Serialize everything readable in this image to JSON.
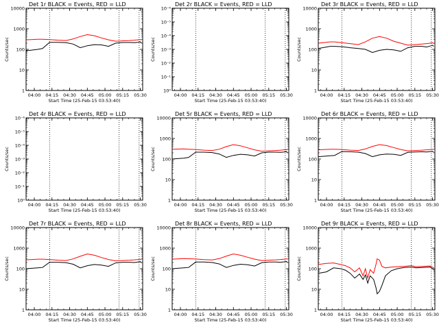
{
  "chart_data": [
    {
      "type": "line",
      "title": "Det 1r BLACK = Events, RED = LLD",
      "xlabel": "Start Time (25-Feb-15 03:53:40)",
      "ylabel": "Counts/sec",
      "yscale": "log",
      "ylim": [
        1,
        10000
      ],
      "y_ticks": [
        "1",
        "10",
        "100",
        "1000",
        "10000"
      ],
      "xlim": [
        "03:53",
        "05:32"
      ],
      "x_ticks": [
        "04:00",
        "04:15",
        "04:30",
        "04:45",
        "05:00",
        "05:15",
        "05:30"
      ],
      "markers": [
        "04:13",
        "05:12",
        "05:29"
      ],
      "x": [
        "03:53",
        "04:03",
        "04:07",
        "04:13",
        "04:20",
        "04:27",
        "04:33",
        "04:39",
        "04:45",
        "04:51",
        "04:57",
        "05:03",
        "05:09",
        "05:15",
        "05:21",
        "05:25",
        "05:28",
        "05:30",
        "05:31"
      ],
      "series": [
        {
          "name": "Events",
          "color": "#000000",
          "values": [
            85,
            100,
            110,
            220,
            220,
            210,
            180,
            120,
            150,
            170,
            165,
            140,
            200,
            215,
            215,
            210,
            220,
            230,
            200
          ]
        },
        {
          "name": "LLD",
          "color": "#ff0000",
          "values": [
            290,
            310,
            310,
            300,
            280,
            270,
            320,
            420,
            520,
            460,
            360,
            290,
            250,
            260,
            270,
            280,
            290,
            300,
            290
          ]
        }
      ]
    },
    {
      "type": "line",
      "title": "Det 2r BLACK = Events, RED = LLD",
      "xlabel": "Start Time (25-Feb-15 03:53:40)",
      "ylabel": "Counts/sec",
      "yscale": "log",
      "ylim": [
        1,
        1e-06
      ],
      "y_ticks": [
        "10⁰",
        "10⁻¹",
        "10⁻²",
        "10⁻³",
        "10⁻⁴",
        "10⁻⁵",
        "10⁻⁶"
      ],
      "xlim": [
        "03:53",
        "05:32"
      ],
      "x_ticks": [
        "04:00",
        "04:15",
        "04:30",
        "04:45",
        "05:00",
        "05:15",
        "05:30"
      ],
      "markers": [
        "04:13",
        "05:12",
        "05:29"
      ],
      "series": []
    },
    {
      "type": "line",
      "title": "Det 3r BLACK = Events, RED = LLD",
      "xlabel": "Start Time (25-Feb-15 03:53:40)",
      "ylabel": "Counts/sec",
      "yscale": "log",
      "ylim": [
        1,
        10000
      ],
      "y_ticks": [
        "1",
        "10",
        "100",
        "1000",
        "10000"
      ],
      "xlim": [
        "03:53",
        "05:32"
      ],
      "x_ticks": [
        "04:00",
        "04:15",
        "04:30",
        "04:45",
        "05:00",
        "05:15",
        "05:30"
      ],
      "markers": [
        "04:13",
        "05:12",
        "05:29"
      ],
      "x": [
        "03:53",
        "04:03",
        "04:07",
        "04:13",
        "04:20",
        "04:27",
        "04:33",
        "04:39",
        "04:45",
        "04:51",
        "04:57",
        "05:03",
        "05:09",
        "05:15",
        "05:21",
        "05:25",
        "05:28",
        "05:30",
        "05:31"
      ],
      "series": [
        {
          "name": "Events",
          "color": "#000000",
          "values": [
            110,
            140,
            140,
            135,
            120,
            110,
            100,
            70,
            90,
            100,
            95,
            80,
            120,
            140,
            140,
            130,
            145,
            160,
            140
          ]
        },
        {
          "name": "LLD",
          "color": "#ff0000",
          "values": [
            200,
            230,
            230,
            210,
            190,
            170,
            230,
            350,
            420,
            350,
            250,
            200,
            160,
            170,
            180,
            190,
            200,
            210,
            190
          ]
        }
      ]
    },
    {
      "type": "line",
      "title": "Det 4r BLACK = Events, RED = LLD",
      "xlabel": "Start Time (25-Feb-15 03:53:40)",
      "ylabel": "Counts/sec",
      "yscale": "log",
      "ylim": [
        1,
        1e-06
      ],
      "y_ticks": [
        "10⁰",
        "10⁻¹",
        "10⁻²",
        "10⁻³",
        "10⁻⁴",
        "10⁻⁵",
        "10⁻⁶"
      ],
      "xlim": [
        "03:53",
        "05:32"
      ],
      "x_ticks": [
        "04:00",
        "04:15",
        "04:30",
        "04:45",
        "05:00",
        "05:15",
        "05:30"
      ],
      "markers": [
        "04:13",
        "05:12",
        "05:29"
      ],
      "series": []
    },
    {
      "type": "line",
      "title": "Det 5r BLACK = Events, RED = LLD",
      "xlabel": "Start Time (25-Feb-15 03:53:40)",
      "ylabel": "Counts/sec",
      "yscale": "log",
      "ylim": [
        1,
        10000
      ],
      "y_ticks": [
        "1",
        "10",
        "100",
        "1000",
        "10000"
      ],
      "xlim": [
        "03:53",
        "05:32"
      ],
      "x_ticks": [
        "04:00",
        "04:15",
        "04:30",
        "04:45",
        "05:00",
        "05:15",
        "05:30"
      ],
      "markers": [
        "04:13",
        "05:12",
        "05:29"
      ],
      "x": [
        "03:53",
        "04:03",
        "04:07",
        "04:13",
        "04:20",
        "04:27",
        "04:33",
        "04:39",
        "04:45",
        "04:51",
        "04:57",
        "05:03",
        "05:09",
        "05:15",
        "05:21",
        "05:25",
        "05:28",
        "05:30",
        "05:31"
      ],
      "series": [
        {
          "name": "Events",
          "color": "#000000",
          "values": [
            100,
            110,
            120,
            215,
            215,
            205,
            175,
            120,
            150,
            170,
            160,
            140,
            200,
            215,
            215,
            210,
            220,
            230,
            200
          ]
        },
        {
          "name": "LLD",
          "color": "#ff0000",
          "values": [
            300,
            310,
            300,
            290,
            270,
            260,
            300,
            400,
            500,
            440,
            350,
            280,
            240,
            250,
            260,
            270,
            280,
            290,
            280
          ]
        }
      ]
    },
    {
      "type": "line",
      "title": "Det 6r BLACK = Events, RED = LLD",
      "xlabel": "Start Time (25-Feb-15 03:53:40)",
      "ylabel": "Counts/sec",
      "yscale": "log",
      "ylim": [
        1,
        10000
      ],
      "y_ticks": [
        "1",
        "10",
        "100",
        "1000",
        "10000"
      ],
      "xlim": [
        "03:53",
        "05:32"
      ],
      "x_ticks": [
        "04:00",
        "04:15",
        "04:30",
        "04:45",
        "05:00",
        "05:15",
        "05:30"
      ],
      "markers": [
        "04:13",
        "05:12",
        "05:29"
      ],
      "x": [
        "03:53",
        "04:03",
        "04:07",
        "04:13",
        "04:20",
        "04:27",
        "04:33",
        "04:39",
        "04:45",
        "04:51",
        "04:57",
        "05:03",
        "05:09",
        "05:15",
        "05:21",
        "05:25",
        "05:28",
        "05:30",
        "05:31"
      ],
      "series": [
        {
          "name": "Events",
          "color": "#000000",
          "values": [
            130,
            145,
            150,
            230,
            225,
            215,
            185,
            130,
            160,
            175,
            170,
            150,
            210,
            220,
            225,
            220,
            230,
            240,
            210
          ]
        },
        {
          "name": "LLD",
          "color": "#ff0000",
          "values": [
            280,
            300,
            300,
            290,
            270,
            260,
            310,
            410,
            500,
            450,
            360,
            290,
            250,
            260,
            270,
            280,
            290,
            300,
            290
          ]
        }
      ]
    },
    {
      "type": "line",
      "title": "Det 7r BLACK = Events, RED = LLD",
      "xlabel": "Start Time (25-Feb-15 03:53:40)",
      "ylabel": "Counts/sec",
      "yscale": "log",
      "ylim": [
        1,
        10000
      ],
      "y_ticks": [
        "1",
        "10",
        "100",
        "1000",
        "10000"
      ],
      "xlim": [
        "03:53",
        "05:32"
      ],
      "x_ticks": [
        "04:00",
        "04:15",
        "04:30",
        "04:45",
        "05:00",
        "05:15",
        "05:30"
      ],
      "markers": [
        "04:13",
        "05:12",
        "05:29"
      ],
      "x": [
        "03:53",
        "04:03",
        "04:07",
        "04:13",
        "04:20",
        "04:27",
        "04:33",
        "04:39",
        "04:45",
        "04:51",
        "04:57",
        "05:03",
        "05:09",
        "05:15",
        "05:21",
        "05:25",
        "05:28",
        "05:30",
        "05:31"
      ],
      "series": [
        {
          "name": "Events",
          "color": "#000000",
          "values": [
            100,
            110,
            115,
            205,
            205,
            195,
            165,
            110,
            140,
            160,
            150,
            130,
            190,
            205,
            205,
            200,
            210,
            220,
            190
          ]
        },
        {
          "name": "LLD",
          "color": "#ff0000",
          "values": [
            270,
            290,
            290,
            280,
            260,
            250,
            300,
            400,
            520,
            450,
            350,
            280,
            240,
            250,
            260,
            270,
            280,
            290,
            280
          ]
        }
      ]
    },
    {
      "type": "line",
      "title": "Det 8r BLACK = Events, RED = LLD",
      "xlabel": "Start Time (25-Feb-15 03:53:40)",
      "ylabel": "Counts/sec",
      "yscale": "log",
      "ylim": [
        1,
        10000
      ],
      "y_ticks": [
        "1",
        "10",
        "100",
        "1000",
        "10000"
      ],
      "xlim": [
        "03:53",
        "05:32"
      ],
      "x_ticks": [
        "04:00",
        "04:15",
        "04:30",
        "04:45",
        "05:00",
        "05:15",
        "05:30"
      ],
      "markers": [
        "04:13",
        "05:12",
        "05:29"
      ],
      "x": [
        "03:53",
        "04:03",
        "04:07",
        "04:13",
        "04:20",
        "04:27",
        "04:33",
        "04:39",
        "04:45",
        "04:51",
        "04:57",
        "05:03",
        "05:09",
        "05:15",
        "05:21",
        "05:25",
        "05:28",
        "05:30",
        "05:31"
      ],
      "series": [
        {
          "name": "Events",
          "color": "#000000",
          "values": [
            100,
            110,
            115,
            210,
            210,
            200,
            170,
            115,
            145,
            165,
            155,
            135,
            195,
            210,
            210,
            205,
            215,
            225,
            195
          ]
        },
        {
          "name": "LLD",
          "color": "#ff0000",
          "values": [
            290,
            310,
            305,
            295,
            275,
            265,
            310,
            410,
            520,
            450,
            360,
            290,
            250,
            260,
            270,
            280,
            290,
            300,
            290
          ]
        }
      ]
    },
    {
      "type": "line",
      "title": "Det 9r BLACK = Events, RED = LLD",
      "xlabel": "Start Time (25-Feb-15 03:53:40)",
      "ylabel": "Counts/sec",
      "yscale": "log",
      "ylim": [
        1,
        10000
      ],
      "y_ticks": [
        "1",
        "10",
        "100",
        "1000",
        "10000"
      ],
      "xlim": [
        "03:53",
        "05:32"
      ],
      "x_ticks": [
        "04:00",
        "04:15",
        "04:30",
        "04:45",
        "05:00",
        "05:15",
        "05:30"
      ],
      "markers": [
        "04:13",
        "05:12",
        "05:29"
      ],
      "x": [
        "03:53",
        "04:00",
        "04:06",
        "04:12",
        "04:16",
        "04:20",
        "04:24",
        "04:28",
        "04:31",
        "04:33",
        "04:35",
        "04:37",
        "04:40",
        "04:42",
        "04:43",
        "04:45",
        "04:47",
        "04:50",
        "04:55",
        "05:00",
        "05:06",
        "05:12",
        "05:16",
        "05:22",
        "05:28",
        "05:31"
      ],
      "series": [
        {
          "name": "Events",
          "color": "#000000",
          "values": [
            60,
            70,
            110,
            100,
            85,
            60,
            35,
            55,
            30,
            50,
            20,
            45,
            30,
            12,
            6,
            8,
            15,
            45,
            80,
            100,
            115,
            120,
            110,
            115,
            120,
            90
          ]
        },
        {
          "name": "LLD",
          "color": "#ff0000",
          "values": [
            160,
            180,
            190,
            160,
            140,
            110,
            70,
            110,
            45,
            100,
            35,
            90,
            60,
            160,
            300,
            260,
            130,
            110,
            120,
            125,
            130,
            140,
            125,
            130,
            135,
            110
          ]
        }
      ]
    }
  ]
}
